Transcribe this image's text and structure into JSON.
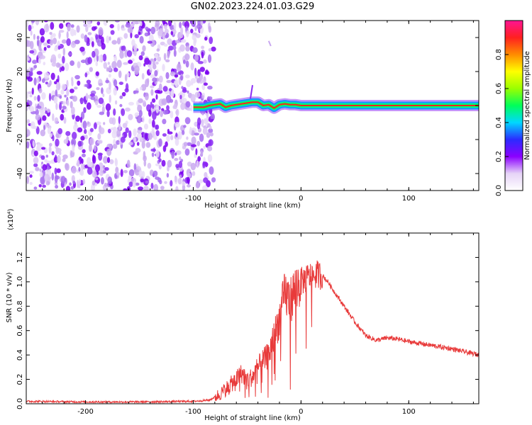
{
  "title": "GN02.2023.224.01.03.G29",
  "chart_data": [
    {
      "type": "heatmap",
      "xlabel": "Height of straight line (km)",
      "ylabel": "Frequency (Hz)",
      "xlim": [
        -255,
        165
      ],
      "ylim": [
        -50,
        50
      ],
      "xticks": [
        -200,
        -100,
        0,
        100
      ],
      "yticks": [
        -40,
        -20,
        0,
        20,
        40
      ],
      "colorbar": {
        "label": "Normalized spectral amplitude",
        "range": [
          0.0,
          1.0
        ],
        "ticks": [
          0.0,
          0.2,
          0.4,
          0.6,
          0.8
        ],
        "colormap": [
          "#ffffff",
          "#e6d3f7",
          "#8b00ff",
          "#2b2bff",
          "#00d8ff",
          "#00ff5a",
          "#9aff00",
          "#ffff00",
          "#ff8c00",
          "#ff2020",
          "#ff1493"
        ]
      },
      "noise_region_x": [
        -255,
        -85
      ],
      "signal_track": {
        "x": [
          -100,
          -90,
          -85,
          -80,
          -75,
          -70,
          -65,
          -60,
          -55,
          -50,
          -45,
          -40,
          -35,
          -30,
          -25,
          -20,
          -15,
          -10,
          -5,
          0,
          10,
          20,
          40,
          60,
          80,
          100,
          120,
          140,
          165
        ],
        "frequency": [
          -1,
          -1,
          0,
          0.5,
          1,
          -1,
          0,
          0.5,
          1,
          1.5,
          2,
          2,
          0,
          0.5,
          -1.5,
          0.5,
          1,
          0.5,
          0.5,
          0,
          0,
          0,
          0,
          0,
          0,
          0,
          0,
          0,
          0
        ]
      }
    },
    {
      "type": "line",
      "xlabel": "Height of straight line (km)",
      "ylabel": "SNR (10 * v/v)",
      "y_multiplier": "(x10⁴)",
      "xlim": [
        -255,
        165
      ],
      "ylim": [
        0,
        1.4
      ],
      "xticks": [
        -200,
        -100,
        0,
        100
      ],
      "yticks": [
        0.0,
        0.2,
        0.4,
        0.6,
        0.8,
        1.0,
        1.2
      ],
      "color": "#e83a3a",
      "x": [
        -255,
        -200,
        -150,
        -100,
        -85,
        -75,
        -70,
        -60,
        -55,
        -50,
        -45,
        -40,
        -35,
        -30,
        -25,
        -20,
        -15,
        -10,
        -5,
        0,
        5,
        10,
        15,
        20,
        25,
        30,
        40,
        50,
        60,
        70,
        80,
        90,
        100,
        120,
        140,
        165
      ],
      "y": [
        0.02,
        0.015,
        0.015,
        0.02,
        0.03,
        0.08,
        0.12,
        0.2,
        0.25,
        0.2,
        0.22,
        0.3,
        0.35,
        0.4,
        0.55,
        0.7,
        0.9,
        0.85,
        0.95,
        1.0,
        1.03,
        1.05,
        1.06,
        1.05,
        1.0,
        0.93,
        0.8,
        0.67,
        0.56,
        0.52,
        0.54,
        0.53,
        0.51,
        0.48,
        0.45,
        0.4
      ]
    }
  ]
}
